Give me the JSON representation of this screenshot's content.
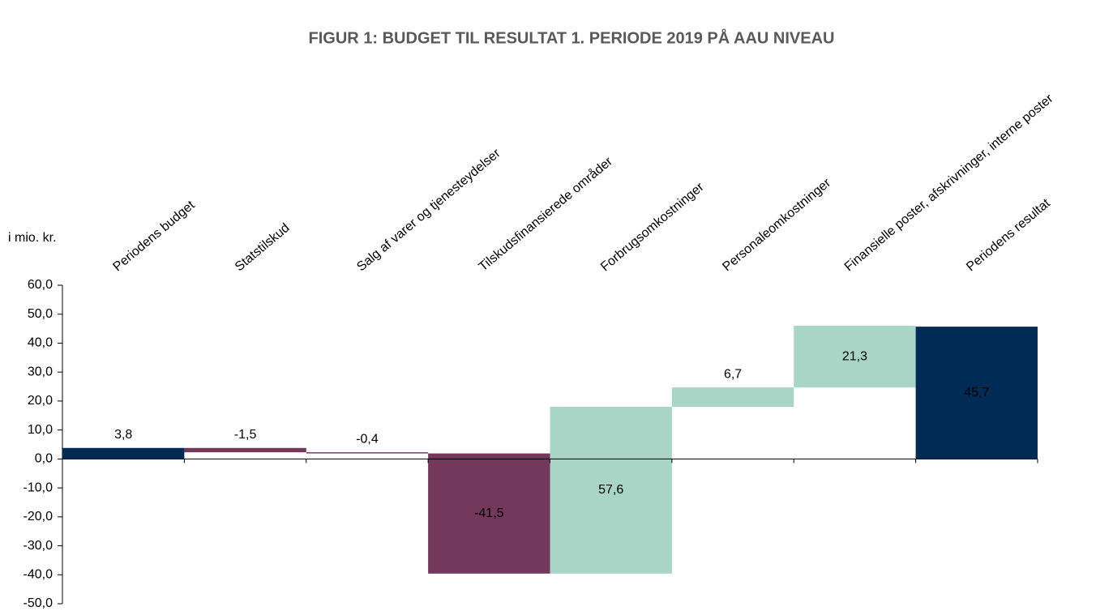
{
  "chart_data": {
    "type": "waterfall",
    "title": "FIGUR 1: BUDGET TIL RESULTAT 1. PERIODE 2019 PÅ AAU NIVEAU",
    "y_axis_label": "i mio. kr.",
    "categories": [
      "Periodens budget",
      "Statstilskud",
      "Salg af varer og tjenesteydelser",
      "Tilskudsfinansierede områder",
      "Forbrugsomkostninger",
      "Personaleomkostninger",
      "Finansielle poster, afskrivninger, interne poster",
      "Periodens resultat"
    ],
    "values": [
      3.8,
      -1.5,
      -0.4,
      -41.5,
      57.6,
      6.7,
      21.3,
      45.7
    ],
    "value_labels": [
      "3,8",
      "-1,5",
      "-0,4",
      "-41,5",
      "57,6",
      "6,7",
      "21,3",
      "45,7"
    ],
    "total_bars": [
      false,
      false,
      false,
      false,
      false,
      false,
      false,
      true
    ],
    "colors": [
      "#002b54",
      "#74385c",
      "#74385c",
      "#74385c",
      "#a8d5c5",
      "#a8d5c5",
      "#a8d5c5",
      "#002b54"
    ],
    "ylim": [
      -50,
      60
    ],
    "yticks": [
      {
        "value": -50,
        "label": "-50,0"
      },
      {
        "value": -40,
        "label": "-40,0"
      },
      {
        "value": -30,
        "label": "-30,0"
      },
      {
        "value": -20,
        "label": "-20,0"
      },
      {
        "value": -10,
        "label": "-10,0"
      },
      {
        "value": 0,
        "label": "0,0"
      },
      {
        "value": 10,
        "label": "10,0"
      },
      {
        "value": 20,
        "label": "20,0"
      },
      {
        "value": 30,
        "label": "30,0"
      },
      {
        "value": 40,
        "label": "40,0"
      },
      {
        "value": 50,
        "label": "50,0"
      },
      {
        "value": 60,
        "label": "60,0"
      }
    ],
    "grid": false
  }
}
